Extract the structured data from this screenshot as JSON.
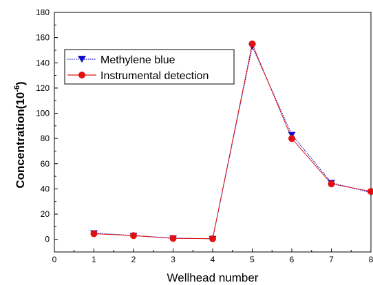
{
  "chart_data": {
    "type": "line",
    "xlabel": "Wellhead number",
    "ylabel": "Concentration(10",
    "ylabel_superscript": "-6",
    "ylabel_suffix": ")",
    "xlim": [
      0,
      8
    ],
    "ylim": [
      -10,
      180
    ],
    "x_ticks": [
      0,
      1,
      2,
      3,
      4,
      5,
      6,
      7,
      8
    ],
    "y_ticks": [
      0,
      20,
      40,
      60,
      80,
      100,
      120,
      140,
      160,
      180
    ],
    "grid": false,
    "legend_position": "upper-left",
    "series": [
      {
        "name": "Methylene blue",
        "color": "#1010c8",
        "marker": "down-triangle",
        "line_style": "dotted",
        "x": [
          1,
          2,
          3,
          4,
          5,
          6,
          7,
          8
        ],
        "y": [
          5,
          3,
          1,
          0.5,
          153,
          83,
          45,
          37
        ]
      },
      {
        "name": "Instrumental detection",
        "color": "#e01010",
        "marker": "circle",
        "line_style": "solid",
        "x": [
          1,
          2,
          3,
          4,
          5,
          6,
          7,
          8
        ],
        "y": [
          4.5,
          3,
          0.8,
          0.5,
          155,
          80,
          44,
          38
        ]
      }
    ]
  }
}
